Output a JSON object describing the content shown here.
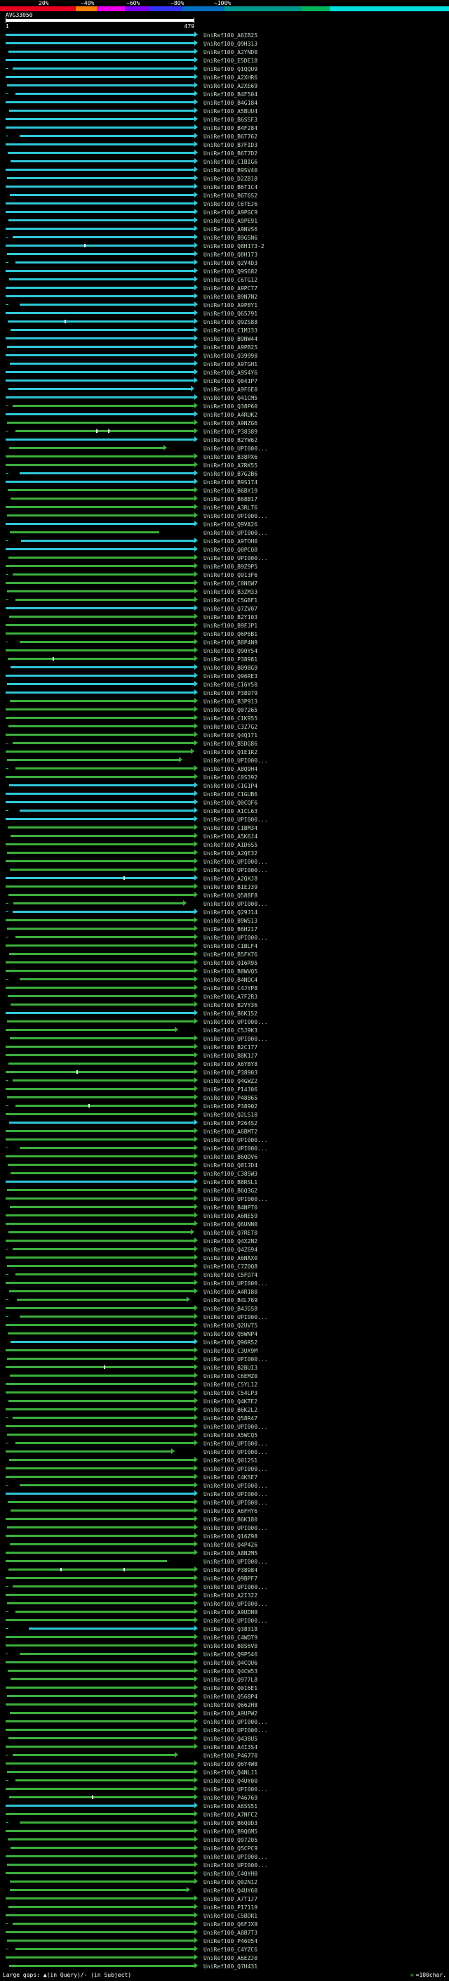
{
  "header": {
    "scale_labels": [
      "20%",
      "~40%",
      "~60%",
      "~80%",
      "~100%"
    ],
    "colorbar_segments": [
      {
        "hex": "#e8001e",
        "w": 108
      },
      {
        "hex": "#ff7f00",
        "w": 30
      },
      {
        "hex": "#ee00ee",
        "w": 40
      },
      {
        "hex": "#8000ff",
        "w": 36
      },
      {
        "hex": "#3333ff",
        "w": 46
      },
      {
        "hex": "#0070c0",
        "w": 60
      },
      {
        "hex": "#009a8c",
        "w": 110
      },
      {
        "hex": "#00b45a",
        "w": 40
      },
      {
        "hex": "#00dede",
        "w": 170
      }
    ]
  },
  "query": {
    "id": "AVG33050",
    "start_label": "1",
    "end_label": "479"
  },
  "colors": {
    "cyan": "#2fc8d8",
    "green": "#3cb03c",
    "query": "#ffffff",
    "label": "#c6d9c6",
    "background": "#000000",
    "gap_tick": "#f0fff0"
  },
  "footer": {
    "gaps_label": "Large gaps: ▲(in Query)/- (in Subject)",
    "scale_symbol": "≡",
    "scale_text": "=100char."
  },
  "chart_data": {
    "type": "bar",
    "orientation": "horizontal",
    "title": "",
    "xlabel": "",
    "ylabel": "",
    "xlim": [
      1,
      479
    ],
    "identity_scale_ticks": [
      "20%",
      "~40%",
      "~60%",
      "~80%",
      "~100%"
    ],
    "label_prefix": "UniRef100_",
    "hit_defaults": {
      "start": 1,
      "end": 479,
      "arrow": true
    },
    "hits": [
      {
        "l": "A6IB25",
        "c": "c"
      },
      {
        "l": "Q9H313",
        "c": "c"
      },
      {
        "l": "A2YND0",
        "c": "c",
        "s": 8
      },
      {
        "l": "E5DE18",
        "c": "c"
      },
      {
        "l": "Q1QQU9",
        "c": "c",
        "s": 18
      },
      {
        "l": "A2XHR6",
        "c": "c"
      },
      {
        "l": "A2XE69",
        "c": "c",
        "s": 5
      },
      {
        "l": "B4F504",
        "c": "c",
        "s": 26
      },
      {
        "l": "B4G184",
        "c": "c"
      },
      {
        "l": "A5BUU4",
        "c": "c",
        "s": 9
      },
      {
        "l": "B6SSF3",
        "c": "c"
      },
      {
        "l": "B4F284",
        "c": "c"
      },
      {
        "l": "B6T762",
        "c": "c",
        "s": 36
      },
      {
        "l": "B7FID3",
        "c": "c"
      },
      {
        "l": "B6T7D2",
        "c": "c",
        "s": 7
      },
      {
        "l": "C1BIG6",
        "c": "c",
        "s": 14
      },
      {
        "l": "B9SV40",
        "c": "c"
      },
      {
        "l": "D2Z818",
        "c": "c",
        "s": 4
      },
      {
        "l": "B6T1C4",
        "c": "c"
      },
      {
        "l": "B6T6S2",
        "c": "c",
        "s": 11
      },
      {
        "l": "C6TEJ6",
        "c": "c"
      },
      {
        "l": "A9PGC9",
        "c": "c"
      },
      {
        "l": "A9PE91",
        "c": "c",
        "s": 8
      },
      {
        "l": "A9NVS6",
        "c": "c"
      },
      {
        "l": "B9GSN6",
        "c": "c",
        "s": 18
      },
      {
        "l": "Q8H173-2",
        "c": "c",
        "g": [
          200
        ]
      },
      {
        "l": "Q8H173",
        "c": "c",
        "s": 5
      },
      {
        "l": "Q2V4D3",
        "c": "c",
        "s": 26
      },
      {
        "l": "Q9S682",
        "c": "c"
      },
      {
        "l": "C6TG12",
        "c": "c",
        "s": 9
      },
      {
        "l": "A9PC77",
        "c": "c"
      },
      {
        "l": "B9N7N2",
        "c": "c"
      },
      {
        "l": "A9P8Y1",
        "c": "c",
        "s": 36
      },
      {
        "l": "Q65791",
        "c": "c"
      },
      {
        "l": "Q9ZS88",
        "c": "c",
        "s": 7,
        "g": [
          150
        ]
      },
      {
        "l": "C1MJ33",
        "c": "c",
        "s": 14
      },
      {
        "l": "B9NW44",
        "c": "c"
      },
      {
        "l": "A9PB25",
        "c": "c",
        "s": 4
      },
      {
        "l": "Q39990",
        "c": "c"
      },
      {
        "l": "A9TGH1",
        "c": "c",
        "s": 11
      },
      {
        "l": "A9S4Y6",
        "c": "c"
      },
      {
        "l": "Q841P7",
        "c": "c"
      },
      {
        "l": "A9F6E0",
        "c": "c",
        "s": 8,
        "e": 470
      },
      {
        "l": "Q41CM5",
        "c": "c"
      },
      {
        "l": "Q38P60",
        "c": "g",
        "s": 18
      },
      {
        "l": "A4RUK2",
        "c": "c"
      },
      {
        "l": "A9NZG6",
        "c": "g",
        "s": 5
      },
      {
        "l": "P38389",
        "c": "g",
        "s": 26,
        "g": [
          230,
          260
        ]
      },
      {
        "l": "B2YW62",
        "c": "c"
      },
      {
        "l": "UPI000...",
        "c": "g",
        "s": 9,
        "e": 400
      },
      {
        "l": "B38PX6",
        "c": "g"
      },
      {
        "l": "A7RK55",
        "c": "g"
      },
      {
        "l": "B7G2B6",
        "c": "c",
        "s": 36
      },
      {
        "l": "B9S174",
        "c": "c"
      },
      {
        "l": "B6BY19",
        "c": "g",
        "s": 7
      },
      {
        "l": "B68B17",
        "c": "g",
        "s": 14
      },
      {
        "l": "A3RLT6",
        "c": "g"
      },
      {
        "l": "UPI000...",
        "c": "g",
        "s": 4
      },
      {
        "l": "Q9VA26",
        "c": "c"
      },
      {
        "l": "UPI000...",
        "c": "g",
        "s": 11,
        "e": 390,
        "a": 0
      },
      {
        "l": "A9TOH0",
        "c": "c",
        "s": 40
      },
      {
        "l": "Q0PCQ8",
        "c": "c"
      },
      {
        "l": "UPI000...",
        "c": "g",
        "s": 8
      },
      {
        "l": "B9Z9P5",
        "c": "g"
      },
      {
        "l": "Q913F6",
        "c": "g",
        "s": 18
      },
      {
        "l": "C0N6W7",
        "c": "g"
      },
      {
        "l": "B3ZM33",
        "c": "g",
        "s": 5
      },
      {
        "l": "C5GBF1",
        "c": "g",
        "s": 26
      },
      {
        "l": "Q7ZV07",
        "c": "c"
      },
      {
        "l": "B2Y103",
        "c": "g",
        "s": 9
      },
      {
        "l": "B9FJP1",
        "c": "g"
      },
      {
        "l": "Q6P6B1",
        "c": "g"
      },
      {
        "l": "B8P4N9",
        "c": "g",
        "s": 36
      },
      {
        "l": "Q90Y54",
        "c": "g"
      },
      {
        "l": "P38981",
        "c": "g",
        "s": 7,
        "g": [
          120
        ]
      },
      {
        "l": "B09BG9",
        "c": "c",
        "s": 14
      },
      {
        "l": "Q96RE3",
        "c": "c"
      },
      {
        "l": "C16Y50",
        "c": "c",
        "s": 4
      },
      {
        "l": "P38979",
        "c": "c"
      },
      {
        "l": "B3P913",
        "c": "g",
        "s": 11
      },
      {
        "l": "Q07265",
        "c": "g"
      },
      {
        "l": "C1K955",
        "c": "g"
      },
      {
        "l": "C3Z7G2",
        "c": "g",
        "s": 8
      },
      {
        "l": "Q4Q171",
        "c": "g"
      },
      {
        "l": "B5DG86",
        "c": "g",
        "s": 18
      },
      {
        "l": "Q1E1R2",
        "c": "g",
        "e": 470
      },
      {
        "l": "UPI000...",
        "c": "g",
        "s": 5,
        "e": 440
      },
      {
        "l": "A8Q9H4",
        "c": "g",
        "s": 26
      },
      {
        "l": "C0S392",
        "c": "g"
      },
      {
        "l": "C1G1P4",
        "c": "c",
        "s": 9
      },
      {
        "l": "C1GUB6",
        "c": "c"
      },
      {
        "l": "Q0CQF6",
        "c": "c"
      },
      {
        "l": "A1CL63",
        "c": "c",
        "s": 36
      },
      {
        "l": "UPI000...",
        "c": "c"
      },
      {
        "l": "C1BM34",
        "c": "g",
        "s": 7
      },
      {
        "l": "A5K6J4",
        "c": "g",
        "s": 14
      },
      {
        "l": "A1D6S5",
        "c": "g"
      },
      {
        "l": "A2QE32",
        "c": "g",
        "s": 4
      },
      {
        "l": "UPI000...",
        "c": "g"
      },
      {
        "l": "UPI000...",
        "c": "g",
        "s": 11
      },
      {
        "l": "A2QXJ8",
        "c": "c",
        "g": [
          300
        ]
      },
      {
        "l": "B1EJ39",
        "c": "g"
      },
      {
        "l": "Q588F8",
        "c": "g",
        "s": 8
      },
      {
        "l": "UPI000...",
        "c": "g",
        "s": 20,
        "e": 450
      },
      {
        "l": "Q29J14",
        "c": "c",
        "s": 18
      },
      {
        "l": "B9WS13",
        "c": "g"
      },
      {
        "l": "B6H217",
        "c": "g",
        "s": 5
      },
      {
        "l": "UPI000...",
        "c": "g",
        "s": 26
      },
      {
        "l": "C1BLF4",
        "c": "g"
      },
      {
        "l": "B5FX76",
        "c": "g",
        "s": 9
      },
      {
        "l": "Q16R95",
        "c": "g"
      },
      {
        "l": "B0WVQ5",
        "c": "g"
      },
      {
        "l": "B4NQC4",
        "c": "g",
        "s": 36
      },
      {
        "l": "C4JYP8",
        "c": "g"
      },
      {
        "l": "A7F2R3",
        "c": "g",
        "s": 7
      },
      {
        "l": "B2VY36",
        "c": "g",
        "s": 14
      },
      {
        "l": "B6K152",
        "c": "c"
      },
      {
        "l": "UPI000...",
        "c": "g",
        "s": 4
      },
      {
        "l": "C5J9K3",
        "c": "g",
        "e": 430
      },
      {
        "l": "UPI000...",
        "c": "g",
        "s": 11
      },
      {
        "l": "B2C177",
        "c": "g"
      },
      {
        "l": "B8K1J7",
        "c": "g"
      },
      {
        "l": "A6YBY8",
        "c": "g",
        "s": 8
      },
      {
        "l": "P38903",
        "c": "g",
        "g": [
          180
        ]
      },
      {
        "l": "Q4GWZ2",
        "c": "g",
        "s": 18
      },
      {
        "l": "P14J06",
        "c": "g"
      },
      {
        "l": "P48865",
        "c": "g",
        "s": 5
      },
      {
        "l": "P38902",
        "c": "g",
        "s": 26,
        "g": [
          210
        ]
      },
      {
        "l": "Q2LS10",
        "c": "g"
      },
      {
        "l": "P264S2",
        "c": "c",
        "s": 9
      },
      {
        "l": "A6BMT2",
        "c": "g"
      },
      {
        "l": "UPI000...",
        "c": "g"
      },
      {
        "l": "UPI000...",
        "c": "g",
        "s": 36
      },
      {
        "l": "B6QDV6",
        "c": "g"
      },
      {
        "l": "Q81JD4",
        "c": "g",
        "s": 7
      },
      {
        "l": "C38SW3",
        "c": "g",
        "s": 14
      },
      {
        "l": "B8RSL1",
        "c": "c"
      },
      {
        "l": "B6Q3G2",
        "c": "g",
        "s": 4
      },
      {
        "l": "UPI000...",
        "c": "g"
      },
      {
        "l": "B4NPT0",
        "c": "g",
        "s": 11
      },
      {
        "l": "A6NE59",
        "c": "g"
      },
      {
        "l": "Q6UNN0",
        "c": "g"
      },
      {
        "l": "Q7RET0",
        "c": "g",
        "s": 8,
        "e": 470
      },
      {
        "l": "Q4X2N2",
        "c": "g"
      },
      {
        "l": "Q4Z694",
        "c": "g",
        "s": 18
      },
      {
        "l": "A6NAX0",
        "c": "g"
      },
      {
        "l": "C7Z0Q8",
        "c": "g",
        "s": 5
      },
      {
        "l": "C5FD74",
        "c": "g",
        "s": 26
      },
      {
        "l": "UPI000...",
        "c": "g"
      },
      {
        "l": "A4R180",
        "c": "g",
        "s": 9
      },
      {
        "l": "B4L769",
        "c": "g",
        "s": 30,
        "e": 460
      },
      {
        "l": "B4JGS8",
        "c": "g"
      },
      {
        "l": "UPI000...",
        "c": "g",
        "s": 36
      },
      {
        "l": "Q2UV75",
        "c": "g"
      },
      {
        "l": "Q5WNP4",
        "c": "g",
        "s": 7
      },
      {
        "l": "Q96R52",
        "c": "c",
        "s": 14
      },
      {
        "l": "C3UX9M",
        "c": "g"
      },
      {
        "l": "UPI000...",
        "c": "g",
        "s": 4
      },
      {
        "l": "B2BUI3",
        "c": "g",
        "g": [
          250
        ]
      },
      {
        "l": "C6EMZ0",
        "c": "g",
        "s": 11
      },
      {
        "l": "C5YL12",
        "c": "g"
      },
      {
        "l": "C54LP3",
        "c": "g"
      },
      {
        "l": "Q4KTE2",
        "c": "g",
        "s": 8
      },
      {
        "l": "B6K2L2",
        "c": "g"
      },
      {
        "l": "Q58R47",
        "c": "g",
        "s": 18
      },
      {
        "l": "UPI000...",
        "c": "g"
      },
      {
        "l": "A5WCQ5",
        "c": "g",
        "s": 5
      },
      {
        "l": "UPI000...",
        "c": "g",
        "s": 26
      },
      {
        "l": "UPI000...",
        "c": "g",
        "e": 420
      },
      {
        "l": "Q012S1",
        "c": "g",
        "s": 9
      },
      {
        "l": "UPI000...",
        "c": "g"
      },
      {
        "l": "C4KSE7",
        "c": "g"
      },
      {
        "l": "UPI000...",
        "c": "g",
        "s": 36
      },
      {
        "l": "UPI000...",
        "c": "c"
      },
      {
        "l": "UPI000...",
        "c": "g",
        "s": 7
      },
      {
        "l": "A6FHY6",
        "c": "g",
        "s": 14
      },
      {
        "l": "B6K180",
        "c": "g"
      },
      {
        "l": "UPI000...",
        "c": "g",
        "s": 4
      },
      {
        "l": "Q16Z98",
        "c": "g"
      },
      {
        "l": "Q4P426",
        "c": "g",
        "s": 11
      },
      {
        "l": "A8N2M5",
        "c": "g"
      },
      {
        "l": "UPI000...",
        "c": "g",
        "e": 410,
        "a": 0
      },
      {
        "l": "P38984",
        "c": "g",
        "s": 8,
        "g": [
          140,
          300
        ]
      },
      {
        "l": "Q9BPF7",
        "c": "g"
      },
      {
        "l": "UPI000...",
        "c": "g",
        "s": 18
      },
      {
        "l": "A2I322",
        "c": "g"
      },
      {
        "l": "UPI000...",
        "c": "g",
        "s": 5
      },
      {
        "l": "A9UDN9",
        "c": "g",
        "s": 26
      },
      {
        "l": "UPI000...",
        "c": "g"
      },
      {
        "l": "Q38318",
        "c": "c",
        "s": 60
      },
      {
        "l": "C4WDT9",
        "c": "g"
      },
      {
        "l": "B0S6V0",
        "c": "g"
      },
      {
        "l": "Q9P546",
        "c": "g",
        "s": 36
      },
      {
        "l": "Q4CQU6",
        "c": "g"
      },
      {
        "l": "Q4CW53",
        "c": "g",
        "s": 7
      },
      {
        "l": "Q977L8",
        "c": "g",
        "s": 14
      },
      {
        "l": "Q016E1",
        "c": "g"
      },
      {
        "l": "Q568P4",
        "c": "g",
        "s": 4
      },
      {
        "l": "Q662H8",
        "c": "g"
      },
      {
        "l": "A9UPW2",
        "c": "g",
        "s": 11
      },
      {
        "l": "UPI000...",
        "c": "g"
      },
      {
        "l": "UPI000...",
        "c": "g"
      },
      {
        "l": "Q438U5",
        "c": "g",
        "s": 8
      },
      {
        "l": "A4I3S4",
        "c": "g"
      },
      {
        "l": "P46770",
        "c": "g",
        "s": 18,
        "e": 430
      },
      {
        "l": "Q6Y4W8",
        "c": "g"
      },
      {
        "l": "Q4NLJ1",
        "c": "g",
        "s": 5
      },
      {
        "l": "Q4UY00",
        "c": "g",
        "s": 26
      },
      {
        "l": "UPI000...",
        "c": "g"
      },
      {
        "l": "P46769",
        "c": "g",
        "s": 9,
        "g": [
          220
        ]
      },
      {
        "l": "A6SS51",
        "c": "c"
      },
      {
        "l": "A7NFC2",
        "c": "g"
      },
      {
        "l": "B6Q0D3",
        "c": "g",
        "s": 36
      },
      {
        "l": "B9Q6M5",
        "c": "g"
      },
      {
        "l": "Q97205",
        "c": "g",
        "s": 7
      },
      {
        "l": "Q5CPC9",
        "c": "g",
        "s": 14
      },
      {
        "l": "UPI000...",
        "c": "g"
      },
      {
        "l": "UPI000...",
        "c": "g",
        "s": 4
      },
      {
        "l": "C4QYH0",
        "c": "g"
      },
      {
        "l": "Q02N12",
        "c": "g",
        "s": 11
      },
      {
        "l": "Q4UY60",
        "c": "g",
        "s": 12,
        "e": 460
      },
      {
        "l": "A7T1J7",
        "c": "g"
      },
      {
        "l": "P17119",
        "c": "g",
        "s": 8
      },
      {
        "l": "C5BDR1",
        "c": "g"
      },
      {
        "l": "Q6FJX9",
        "c": "g",
        "s": 18
      },
      {
        "l": "A8B7T3",
        "c": "g"
      },
      {
        "l": "P46054",
        "c": "g",
        "s": 5
      },
      {
        "l": "C4YZC6",
        "c": "g",
        "s": 26
      },
      {
        "l": "A6EZJ0",
        "c": "g"
      },
      {
        "l": "Q7H431",
        "c": "g",
        "s": 9
      }
    ]
  }
}
